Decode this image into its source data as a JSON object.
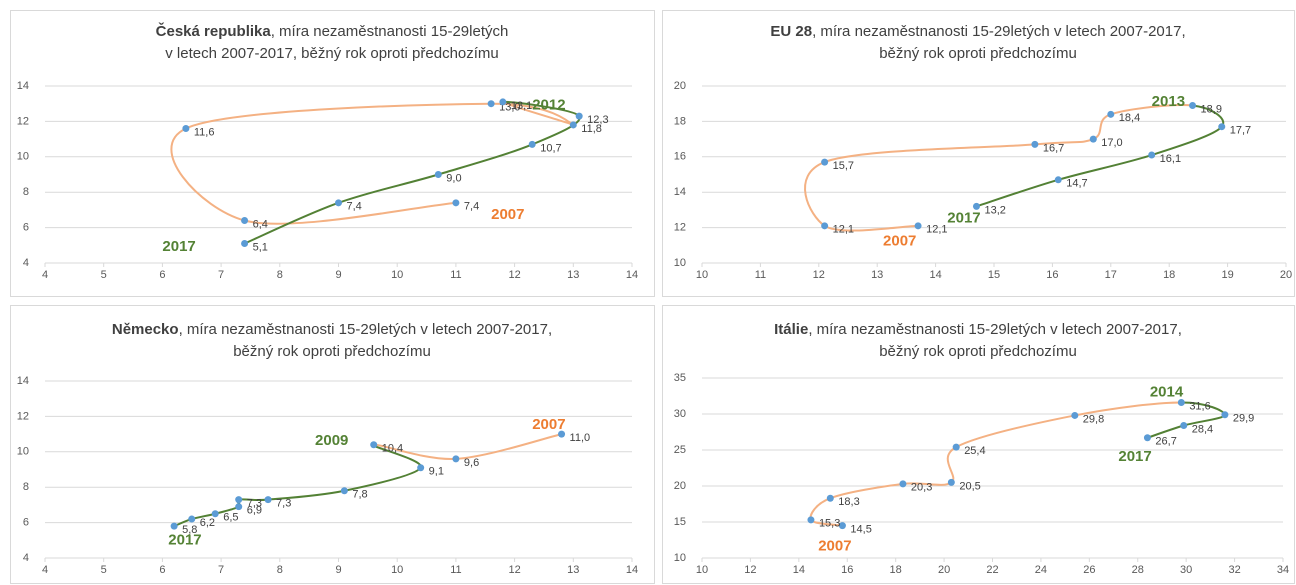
{
  "chart_data": [
    {
      "type": "connected-scatter",
      "title": {
        "bold": "Česká republika",
        "rest": ", míra nezaměstnanosti 15-29letých",
        "line2": "v letech 2007-2017, běžný rok oproti předchozímu"
      },
      "x": [
        11.0,
        7.4,
        6.4,
        11.6,
        13.0,
        11.8,
        13.1,
        12.3,
        10.7,
        9.0,
        7.4
      ],
      "y": [
        7.4,
        6.4,
        11.6,
        13.0,
        11.8,
        13.1,
        12.3,
        10.7,
        9.0,
        7.4,
        5.1
      ],
      "value_labels": [
        "7,4",
        "6,4",
        "11,6",
        "13,0",
        "11,8",
        "13,1",
        "12,3",
        "10,7",
        "9,0",
        "7,4",
        "5,1"
      ],
      "line_colors": [
        "#f4b183",
        "#f4b183",
        "#f4b183",
        "#f4b183",
        "#f4b183",
        "#538135",
        "#538135",
        "#538135",
        "#538135",
        "#538135"
      ],
      "point_color": "#5b9bd5",
      "xlim": [
        4,
        14
      ],
      "xticks": [
        4,
        5,
        6,
        7,
        8,
        9,
        10,
        11,
        12,
        13,
        14
      ],
      "ylim": [
        4,
        14
      ],
      "yticks": [
        4,
        6,
        8,
        10,
        12,
        14
      ],
      "grid": true,
      "annotations": [
        {
          "text": "2012",
          "x": 12.3,
          "y": 12.9,
          "color": "#548235"
        },
        {
          "text": "2007",
          "x": 11.6,
          "y": 6.7,
          "color": "#ed7d31"
        },
        {
          "text": "2017",
          "x": 6.0,
          "y": 4.9,
          "color": "#548235"
        }
      ]
    },
    {
      "type": "connected-scatter",
      "title": {
        "bold": "EU 28",
        "rest": ",  míra nezaměstnanosti 15-29letých v letech 2007-2017,",
        "line2": "běžný rok oproti předchozímu"
      },
      "x": [
        13.7,
        12.1,
        12.1,
        15.7,
        16.7,
        17.0,
        18.4,
        18.9,
        17.7,
        16.1,
        14.7
      ],
      "y": [
        12.1,
        12.1,
        15.7,
        16.7,
        17.0,
        18.4,
        18.9,
        17.7,
        16.1,
        14.7,
        13.2
      ],
      "value_labels": [
        "12,1",
        "12,1",
        "15,7",
        "16,7",
        "17,0",
        "18,4",
        "18,9",
        "17,7",
        "16,1",
        "14,7",
        "13,2"
      ],
      "line_colors": [
        "#f4b183",
        "#f4b183",
        "#f4b183",
        "#f4b183",
        "#f4b183",
        "#f4b183",
        "#538135",
        "#538135",
        "#538135",
        "#538135"
      ],
      "point_color": "#5b9bd5",
      "xlim": [
        10,
        20
      ],
      "xticks": [
        10,
        11,
        12,
        13,
        14,
        15,
        16,
        17,
        18,
        19,
        20
      ],
      "ylim": [
        10,
        20
      ],
      "yticks": [
        10,
        12,
        14,
        16,
        18,
        20
      ],
      "grid": true,
      "annotations": [
        {
          "text": "2013",
          "x": 17.7,
          "y": 19.1,
          "color": "#548235"
        },
        {
          "text": "2007",
          "x": 13.1,
          "y": 11.2,
          "color": "#ed7d31"
        },
        {
          "text": "2017",
          "x": 14.2,
          "y": 12.5,
          "color": "#548235"
        }
      ]
    },
    {
      "type": "connected-scatter",
      "title": {
        "bold": "Německo",
        "rest": ",  míra nezaměstnanosti 15-29letých v letech 2007-2017,",
        "line2": "běžný rok oproti předchozímu"
      },
      "x": [
        12.8,
        11.0,
        9.6,
        10.4,
        9.1,
        7.8,
        7.3,
        7.3,
        6.9,
        6.5,
        6.2
      ],
      "y": [
        11.0,
        9.6,
        10.4,
        9.1,
        7.8,
        7.3,
        7.3,
        6.9,
        6.5,
        6.2,
        5.8
      ],
      "value_labels": [
        "11,0",
        "9,6",
        "10,4",
        "9,1",
        "7,8",
        "7,3",
        "7,3",
        "6,9",
        "6,5",
        "6,2",
        "5,8"
      ],
      "line_colors": [
        "#f4b183",
        "#f4b183",
        "#538135",
        "#538135",
        "#538135",
        "#538135",
        "#538135",
        "#538135",
        "#538135",
        "#538135"
      ],
      "point_color": "#5b9bd5",
      "xlim": [
        4,
        14
      ],
      "xticks": [
        4,
        5,
        6,
        7,
        8,
        9,
        10,
        11,
        12,
        13,
        14
      ],
      "ylim": [
        4,
        14
      ],
      "yticks": [
        4,
        6,
        8,
        10,
        12,
        14
      ],
      "grid": true,
      "annotations": [
        {
          "text": "2009",
          "x": 8.6,
          "y": 10.6,
          "color": "#548235"
        },
        {
          "text": "2007",
          "x": 12.3,
          "y": 11.5,
          "color": "#ed7d31"
        },
        {
          "text": "2017",
          "x": 6.1,
          "y": 5.0,
          "color": "#548235"
        }
      ]
    },
    {
      "type": "connected-scatter",
      "title": {
        "bold": "Itálie",
        "rest": ",  míra nezaměstnanosti 15-29letých v letech 2007-2017,",
        "line2": "běžný rok oproti předchozímu"
      },
      "x": [
        15.8,
        14.5,
        15.3,
        18.3,
        20.3,
        20.5,
        25.4,
        29.8,
        31.6,
        29.9,
        28.4
      ],
      "y": [
        14.5,
        15.3,
        18.3,
        20.3,
        20.5,
        25.4,
        29.8,
        31.6,
        29.9,
        28.4,
        26.7
      ],
      "value_labels": [
        "14,5",
        "15,3",
        "18,3",
        "20,3",
        "20,5",
        "25,4",
        "29,8",
        "31,6",
        "29,9",
        "28,4",
        "26,7"
      ],
      "line_colors": [
        "#f4b183",
        "#f4b183",
        "#f4b183",
        "#f4b183",
        "#f4b183",
        "#f4b183",
        "#f4b183",
        "#538135",
        "#538135",
        "#538135"
      ],
      "point_color": "#5b9bd5",
      "xlim": [
        10,
        34
      ],
      "xticks": [
        10,
        12,
        14,
        16,
        18,
        20,
        22,
        24,
        26,
        28,
        30,
        32,
        34
      ],
      "ylim": [
        10,
        35
      ],
      "yticks": [
        10,
        15,
        20,
        25,
        30,
        35
      ],
      "grid": true,
      "annotations": [
        {
          "text": "2014",
          "x": 28.5,
          "y": 33.0,
          "color": "#548235"
        },
        {
          "text": "2007",
          "x": 14.8,
          "y": 11.6,
          "color": "#ed7d31"
        },
        {
          "text": "2017",
          "x": 27.2,
          "y": 24.0,
          "color": "#548235"
        }
      ]
    }
  ]
}
